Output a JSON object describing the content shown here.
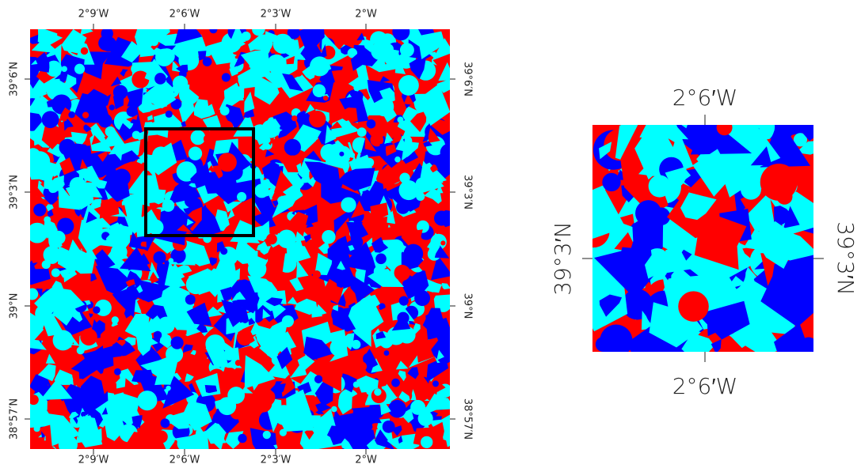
{
  "main_map": {
    "top_labels": [
      "2°9′W",
      "2°6′W",
      "2°3′W",
      "2°W"
    ],
    "bottom_labels": [
      "2°9′W",
      "2°6′W",
      "2°3′W",
      "2°W"
    ],
    "left_labels": [
      "39°6′N",
      "39°3′N",
      "39°N",
      "38°57′N"
    ],
    "right_labels": [
      "39°6′N",
      "39°3′N",
      "39°N",
      "38°57′N"
    ]
  },
  "inset_map": {
    "top_label": "2°6′W",
    "bottom_label": "2°6′W",
    "left_label": "39°3′N",
    "right_label": "39°3′N"
  }
}
